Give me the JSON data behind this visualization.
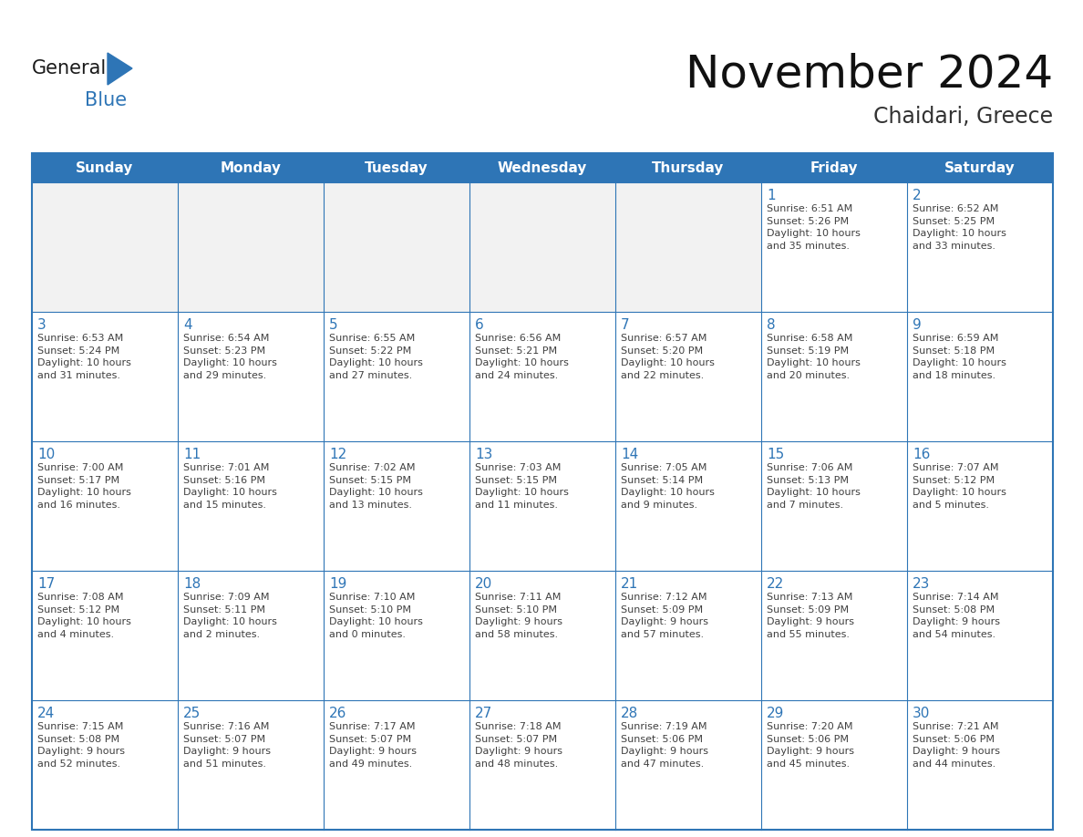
{
  "title": "November 2024",
  "subtitle": "Chaidari, Greece",
  "days_of_week": [
    "Sunday",
    "Monday",
    "Tuesday",
    "Wednesday",
    "Thursday",
    "Friday",
    "Saturday"
  ],
  "header_bg": "#2E75B6",
  "header_fg": "#FFFFFF",
  "cell_bg_normal": "#FFFFFF",
  "cell_bg_first": "#F2F2F2",
  "cell_border": "#2E75B6",
  "cell_divider": "#C0C0C0",
  "day_num_color": "#2E75B6",
  "text_color": "#404040",
  "logo_general_color": "#1A1A1A",
  "logo_blue_color": "#2E75B6",
  "weeks": [
    [
      {
        "day": "",
        "info": ""
      },
      {
        "day": "",
        "info": ""
      },
      {
        "day": "",
        "info": ""
      },
      {
        "day": "",
        "info": ""
      },
      {
        "day": "",
        "info": ""
      },
      {
        "day": "1",
        "info": "Sunrise: 6:51 AM\nSunset: 5:26 PM\nDaylight: 10 hours\nand 35 minutes."
      },
      {
        "day": "2",
        "info": "Sunrise: 6:52 AM\nSunset: 5:25 PM\nDaylight: 10 hours\nand 33 minutes."
      }
    ],
    [
      {
        "day": "3",
        "info": "Sunrise: 6:53 AM\nSunset: 5:24 PM\nDaylight: 10 hours\nand 31 minutes."
      },
      {
        "day": "4",
        "info": "Sunrise: 6:54 AM\nSunset: 5:23 PM\nDaylight: 10 hours\nand 29 minutes."
      },
      {
        "day": "5",
        "info": "Sunrise: 6:55 AM\nSunset: 5:22 PM\nDaylight: 10 hours\nand 27 minutes."
      },
      {
        "day": "6",
        "info": "Sunrise: 6:56 AM\nSunset: 5:21 PM\nDaylight: 10 hours\nand 24 minutes."
      },
      {
        "day": "7",
        "info": "Sunrise: 6:57 AM\nSunset: 5:20 PM\nDaylight: 10 hours\nand 22 minutes."
      },
      {
        "day": "8",
        "info": "Sunrise: 6:58 AM\nSunset: 5:19 PM\nDaylight: 10 hours\nand 20 minutes."
      },
      {
        "day": "9",
        "info": "Sunrise: 6:59 AM\nSunset: 5:18 PM\nDaylight: 10 hours\nand 18 minutes."
      }
    ],
    [
      {
        "day": "10",
        "info": "Sunrise: 7:00 AM\nSunset: 5:17 PM\nDaylight: 10 hours\nand 16 minutes."
      },
      {
        "day": "11",
        "info": "Sunrise: 7:01 AM\nSunset: 5:16 PM\nDaylight: 10 hours\nand 15 minutes."
      },
      {
        "day": "12",
        "info": "Sunrise: 7:02 AM\nSunset: 5:15 PM\nDaylight: 10 hours\nand 13 minutes."
      },
      {
        "day": "13",
        "info": "Sunrise: 7:03 AM\nSunset: 5:15 PM\nDaylight: 10 hours\nand 11 minutes."
      },
      {
        "day": "14",
        "info": "Sunrise: 7:05 AM\nSunset: 5:14 PM\nDaylight: 10 hours\nand 9 minutes."
      },
      {
        "day": "15",
        "info": "Sunrise: 7:06 AM\nSunset: 5:13 PM\nDaylight: 10 hours\nand 7 minutes."
      },
      {
        "day": "16",
        "info": "Sunrise: 7:07 AM\nSunset: 5:12 PM\nDaylight: 10 hours\nand 5 minutes."
      }
    ],
    [
      {
        "day": "17",
        "info": "Sunrise: 7:08 AM\nSunset: 5:12 PM\nDaylight: 10 hours\nand 4 minutes."
      },
      {
        "day": "18",
        "info": "Sunrise: 7:09 AM\nSunset: 5:11 PM\nDaylight: 10 hours\nand 2 minutes."
      },
      {
        "day": "19",
        "info": "Sunrise: 7:10 AM\nSunset: 5:10 PM\nDaylight: 10 hours\nand 0 minutes."
      },
      {
        "day": "20",
        "info": "Sunrise: 7:11 AM\nSunset: 5:10 PM\nDaylight: 9 hours\nand 58 minutes."
      },
      {
        "day": "21",
        "info": "Sunrise: 7:12 AM\nSunset: 5:09 PM\nDaylight: 9 hours\nand 57 minutes."
      },
      {
        "day": "22",
        "info": "Sunrise: 7:13 AM\nSunset: 5:09 PM\nDaylight: 9 hours\nand 55 minutes."
      },
      {
        "day": "23",
        "info": "Sunrise: 7:14 AM\nSunset: 5:08 PM\nDaylight: 9 hours\nand 54 minutes."
      }
    ],
    [
      {
        "day": "24",
        "info": "Sunrise: 7:15 AM\nSunset: 5:08 PM\nDaylight: 9 hours\nand 52 minutes."
      },
      {
        "day": "25",
        "info": "Sunrise: 7:16 AM\nSunset: 5:07 PM\nDaylight: 9 hours\nand 51 minutes."
      },
      {
        "day": "26",
        "info": "Sunrise: 7:17 AM\nSunset: 5:07 PM\nDaylight: 9 hours\nand 49 minutes."
      },
      {
        "day": "27",
        "info": "Sunrise: 7:18 AM\nSunset: 5:07 PM\nDaylight: 9 hours\nand 48 minutes."
      },
      {
        "day": "28",
        "info": "Sunrise: 7:19 AM\nSunset: 5:06 PM\nDaylight: 9 hours\nand 47 minutes."
      },
      {
        "day": "29",
        "info": "Sunrise: 7:20 AM\nSunset: 5:06 PM\nDaylight: 9 hours\nand 45 minutes."
      },
      {
        "day": "30",
        "info": "Sunrise: 7:21 AM\nSunset: 5:06 PM\nDaylight: 9 hours\nand 44 minutes."
      }
    ]
  ]
}
